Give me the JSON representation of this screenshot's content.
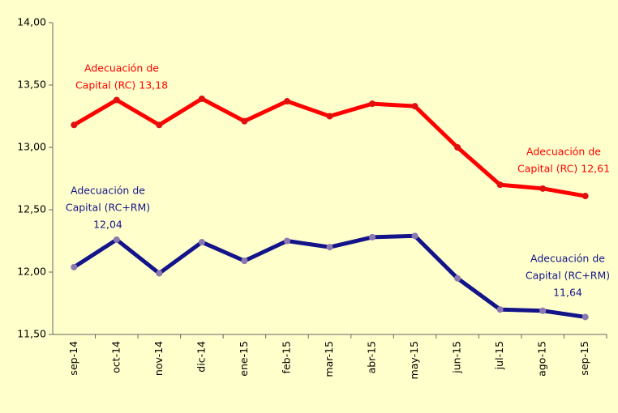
{
  "chart_data": {
    "type": "line",
    "categories": [
      "sep-14",
      "oct-14",
      "nov-14",
      "dic-14",
      "ene-15",
      "feb-15",
      "mar-15",
      "abr-15",
      "may-15",
      "jun-15",
      "jul-15",
      "ago-15",
      "sep-15"
    ],
    "series": [
      {
        "color": "#ff0000",
        "marker_color": "#e01010",
        "values": [
          13.18,
          13.38,
          13.18,
          13.39,
          13.21,
          13.37,
          13.25,
          13.35,
          13.33,
          13.0,
          12.7,
          12.67,
          12.61
        ]
      },
      {
        "color": "#14148a",
        "marker_color": "#8a78b0",
        "values": [
          12.04,
          12.26,
          11.99,
          12.24,
          12.09,
          12.25,
          12.2,
          12.28,
          12.29,
          11.95,
          11.7,
          11.69,
          11.64
        ]
      }
    ],
    "ylim": [
      11.5,
      14.0
    ],
    "yticks": [
      {
        "value": 11.5,
        "label": "11,50"
      },
      {
        "value": 12.0,
        "label": "12,00"
      },
      {
        "value": 12.5,
        "label": "12,50"
      },
      {
        "value": 13.0,
        "label": "13,00"
      },
      {
        "value": 13.5,
        "label": "13,50"
      },
      {
        "value": 14.0,
        "label": "14,00"
      }
    ],
    "annotations": [
      {
        "lines": [
          "Adecuación de",
          "Capital (RC)  13,18"
        ],
        "color": "#ff0000"
      },
      {
        "lines": [
          "Adecuación de",
          "Capital (RC) 12,61"
        ],
        "color": "#ff0000"
      },
      {
        "lines": [
          "Adecuación de",
          "Capital (RC+RM)",
          "12,04"
        ],
        "color": "#14148a"
      },
      {
        "lines": [
          "Adecuación de",
          "Capital (RC+RM)",
          "11,64"
        ],
        "color": "#14148a"
      }
    ]
  }
}
